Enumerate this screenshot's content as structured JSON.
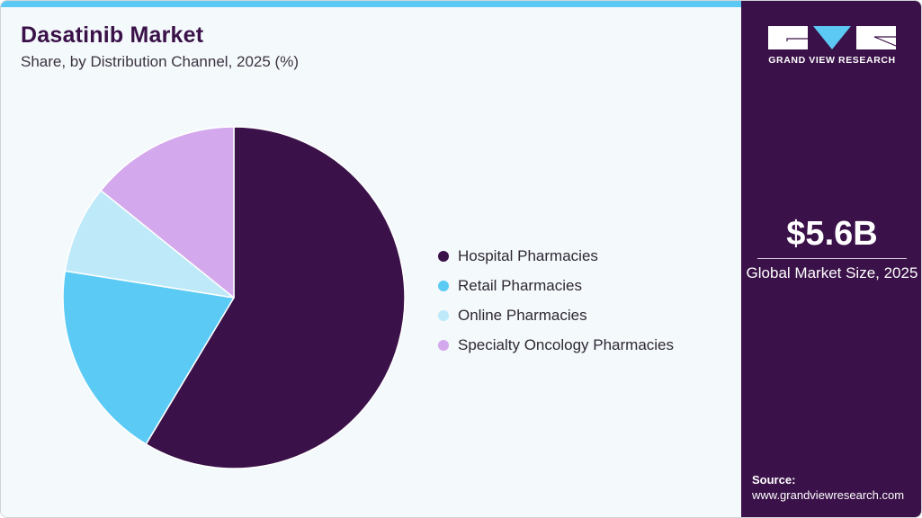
{
  "header": {
    "title": "Dasatinib Market",
    "subtitle": "Share, by Distribution Channel, 2025 (%)"
  },
  "colors": {
    "top_bar": "#5bc9f4",
    "sidebar_bg": "#3a1148",
    "main_bg": "#f4f9fc",
    "title": "#3a1148"
  },
  "chart_data": {
    "type": "pie",
    "title": "Dasatinib Market",
    "subtitle": "Share, by Distribution Channel, 2025 (%)",
    "categories": [
      "Hospital Pharmacies",
      "Retail Pharmacies",
      "Online Pharmacies",
      "Specialty Oncology Pharmacies"
    ],
    "values": [
      58.6,
      18.9,
      8.3,
      14.2
    ],
    "colors": [
      "#3a1148",
      "#5bcbf5",
      "#bde9f9",
      "#d4a8ec"
    ],
    "start_angle_deg": 0,
    "direction": "clockwise",
    "legend_position": "right",
    "data_labels": false
  },
  "legend": {
    "items": [
      {
        "label": "Hospital Pharmacies",
        "color": "#3a1148"
      },
      {
        "label": "Retail Pharmacies",
        "color": "#5bcbf5"
      },
      {
        "label": "Online Pharmacies",
        "color": "#bde9f9"
      },
      {
        "label": "Specialty Oncology Pharmacies",
        "color": "#d4a8ec"
      }
    ]
  },
  "sidebar": {
    "logo_icon": "grand-view-research-logo",
    "logo_text": "GRAND VIEW RESEARCH",
    "market_value": "$5.6B",
    "market_label": "Global Market Size, 2025",
    "source_label": "Source:",
    "source_url": "www.grandviewresearch.com"
  }
}
